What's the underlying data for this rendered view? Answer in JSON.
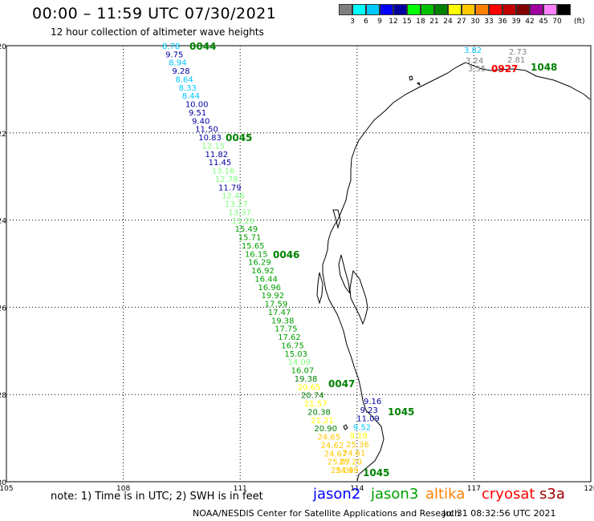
{
  "header": {
    "title": "00:00 – 11:59 UTC 07/30/2021",
    "subtitle": "12 hour collection of altimeter wave heights"
  },
  "scale": {
    "labels": [
      "3",
      "6",
      "9",
      "12",
      "15",
      "18",
      "21",
      "24",
      "27",
      "30",
      "33",
      "36",
      "39",
      "42",
      "45",
      "70"
    ],
    "unit": "(ft)",
    "colors": [
      "#7f7f7f",
      "#00ffff",
      "#00c8ff",
      "#0000ff",
      "#0000a0",
      "#00ff00",
      "#00c000",
      "#008000",
      "#ffff00",
      "#ffc800",
      "#ff8000",
      "#ff0000",
      "#c00000",
      "#800000",
      "#a000a0",
      "#ff80ff",
      "#000000"
    ]
  },
  "map": {
    "lat_labels": [
      "-20",
      "-22",
      "-24",
      "-26",
      "-28",
      "-30"
    ],
    "lon_labels": [
      "105",
      "108",
      "111",
      "114",
      "117",
      "120"
    ],
    "passes": [
      {
        "name": "0044",
        "color": "#008000"
      },
      {
        "name": "0045",
        "color": "#008000"
      },
      {
        "name": "0046",
        "color": "#008000"
      },
      {
        "name": "0047",
        "color": "#008000"
      },
      {
        "name": "1045",
        "color": "#008000"
      },
      {
        "name": "1045",
        "color": "#008000"
      },
      {
        "name": "1048",
        "color": "#008000"
      },
      {
        "name": "0927",
        "color": "#ff0000"
      }
    ],
    "track_main": [
      {
        "v": "8.78",
        "c": "#00c8ff"
      },
      {
        "v": "9.75",
        "c": "#0000a0"
      },
      {
        "v": "8.94",
        "c": "#00c8ff"
      },
      {
        "v": "9.28",
        "c": "#0000a0"
      },
      {
        "v": "8.64",
        "c": "#00c8ff"
      },
      {
        "v": "8.33",
        "c": "#00c8ff"
      },
      {
        "v": "8.44",
        "c": "#00c8ff"
      },
      {
        "v": "10.00",
        "c": "#0000a0"
      },
      {
        "v": "9.51",
        "c": "#0000a0"
      },
      {
        "v": "9.40",
        "c": "#0000a0"
      },
      {
        "v": "11.50",
        "c": "#0000a0"
      },
      {
        "v": "10.83",
        "c": "#0000a0"
      },
      {
        "v": "12.15",
        "c": "#80ff80"
      },
      {
        "v": "11.82",
        "c": "#0000a0"
      },
      {
        "v": "11.45",
        "c": "#0000a0"
      },
      {
        "v": "13.16",
        "c": "#80ff80"
      },
      {
        "v": "12.78",
        "c": "#80ff80"
      },
      {
        "v": "11.79",
        "c": "#0000a0"
      },
      {
        "v": "12.46",
        "c": "#80ff80"
      },
      {
        "v": "13.27",
        "c": "#80ff80"
      },
      {
        "v": "13.37",
        "c": "#80ff80"
      },
      {
        "v": "13.20",
        "c": "#80ff80"
      },
      {
        "v": "15.49",
        "c": "#00a000"
      },
      {
        "v": "15.71",
        "c": "#00a000"
      },
      {
        "v": "15.65",
        "c": "#00a000"
      },
      {
        "v": "16.15",
        "c": "#00a000"
      },
      {
        "v": "16.29",
        "c": "#00a000"
      },
      {
        "v": "16.92",
        "c": "#00a000"
      },
      {
        "v": "16.44",
        "c": "#00a000"
      },
      {
        "v": "16.96",
        "c": "#00a000"
      },
      {
        "v": "19.92",
        "c": "#00a000"
      },
      {
        "v": "17.59",
        "c": "#00a000"
      },
      {
        "v": "17.47",
        "c": "#00a000"
      },
      {
        "v": "19.38",
        "c": "#00a000"
      },
      {
        "v": "17.75",
        "c": "#00a000"
      },
      {
        "v": "17.62",
        "c": "#00a000"
      },
      {
        "v": "16.75",
        "c": "#00a000"
      },
      {
        "v": "15.03",
        "c": "#00a000"
      },
      {
        "v": "14.09",
        "c": "#80ff80"
      },
      {
        "v": "16.07",
        "c": "#00a000"
      },
      {
        "v": "19.38",
        "c": "#008000"
      },
      {
        "v": "20.65",
        "c": "#ffff00"
      },
      {
        "v": "20.74",
        "c": "#008000"
      },
      {
        "v": "21.57",
        "c": "#ffff00"
      },
      {
        "v": "20.38",
        "c": "#008000"
      },
      {
        "v": "21.21",
        "c": "#ffff00"
      },
      {
        "v": "20.90",
        "c": "#008000"
      },
      {
        "v": "24.65",
        "c": "#ffc800"
      },
      {
        "v": "24.62",
        "c": "#ffc800"
      },
      {
        "v": "24.67",
        "c": "#ffc800"
      },
      {
        "v": "25.07",
        "c": "#ffc800"
      },
      {
        "v": "25.04",
        "c": "#ffc800"
      }
    ],
    "track_east": [
      {
        "v": "9.16",
        "c": "#0000a0"
      },
      {
        "v": "9.23",
        "c": "#0000a0"
      },
      {
        "v": "11.09",
        "c": "#0000a0"
      },
      {
        "v": "9.52",
        "c": "#00c8ff"
      },
      {
        "v": "9.19",
        "c": "#ffff00"
      },
      {
        "v": "25.36",
        "c": "#ffc800"
      },
      {
        "v": "24.61",
        "c": "#ffc800"
      },
      {
        "v": "25.20",
        "c": "#ffc800"
      },
      {
        "v": "24.99",
        "c": "#ffc800"
      }
    ],
    "track_ne": [
      {
        "v": "3.82",
        "c": "#00c8ff"
      },
      {
        "v": "3.24",
        "c": "#7f7f7f"
      },
      {
        "v": "3.55",
        "c": "#7f7f7f"
      },
      {
        "v": "2.73",
        "c": "#7f7f7f"
      },
      {
        "v": "2.81",
        "c": "#7f7f7f"
      }
    ]
  },
  "footer": {
    "note": "note:  1) Time is in UTC;  2) SWH is in feet",
    "satellites": [
      {
        "name": "jason2",
        "color": "#0000ff"
      },
      {
        "name": "jason3",
        "color": "#00a000"
      },
      {
        "name": "altika",
        "color": "#ff8000"
      },
      {
        "name": "cryosat",
        "color": "#ff0000"
      },
      {
        "name": "s3a",
        "color": "#a00000"
      }
    ],
    "credit": "NOAA/NESDIS Center for Satellite Applications and Research",
    "timestamp": "Jul 31 08:32:56 UTC 2021"
  }
}
